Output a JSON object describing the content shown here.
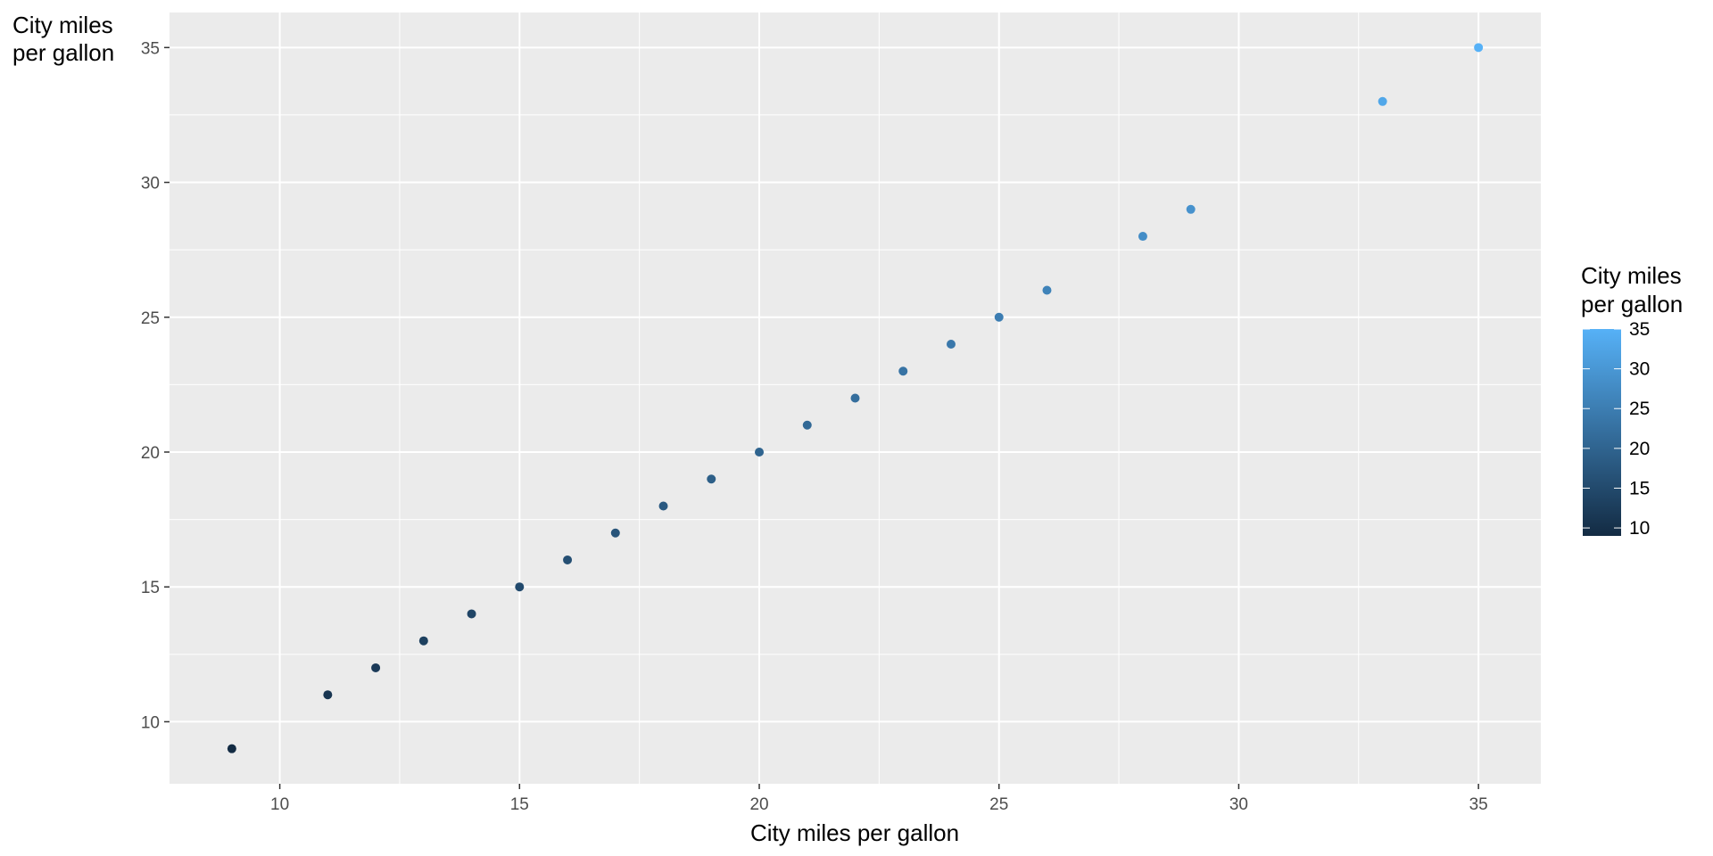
{
  "chart_data": {
    "type": "scatter",
    "title": "",
    "xlabel": "City miles per gallon",
    "ylabel_lines": [
      "City miles",
      "per gallon"
    ],
    "x": [
      9,
      11,
      12,
      13,
      14,
      15,
      16,
      17,
      18,
      19,
      20,
      21,
      22,
      23,
      24,
      25,
      26,
      28,
      29,
      33,
      35
    ],
    "y": [
      9,
      11,
      12,
      13,
      14,
      15,
      16,
      17,
      18,
      19,
      20,
      21,
      22,
      23,
      24,
      25,
      26,
      28,
      29,
      33,
      35
    ],
    "color_values": [
      9,
      11,
      12,
      13,
      14,
      15,
      16,
      17,
      18,
      19,
      20,
      21,
      22,
      23,
      24,
      25,
      26,
      28,
      29,
      33,
      35
    ],
    "xlim": [
      7.7,
      36.3
    ],
    "ylim": [
      7.7,
      36.3
    ],
    "x_ticks": [
      10,
      15,
      20,
      25,
      30,
      35
    ],
    "y_ticks": [
      10,
      15,
      20,
      25,
      30,
      35
    ],
    "grid": true,
    "legend": {
      "type": "colorbar",
      "title_lines": [
        "City miles",
        "per gallon"
      ],
      "range": [
        9,
        35
      ],
      "ticks": [
        10,
        15,
        20,
        25,
        30,
        35
      ],
      "placement": "right",
      "color_low": "#132B43",
      "color_high": "#56B1F7"
    },
    "panel_background": "#EBEBEB",
    "grid_color": "#FFFFFF"
  }
}
